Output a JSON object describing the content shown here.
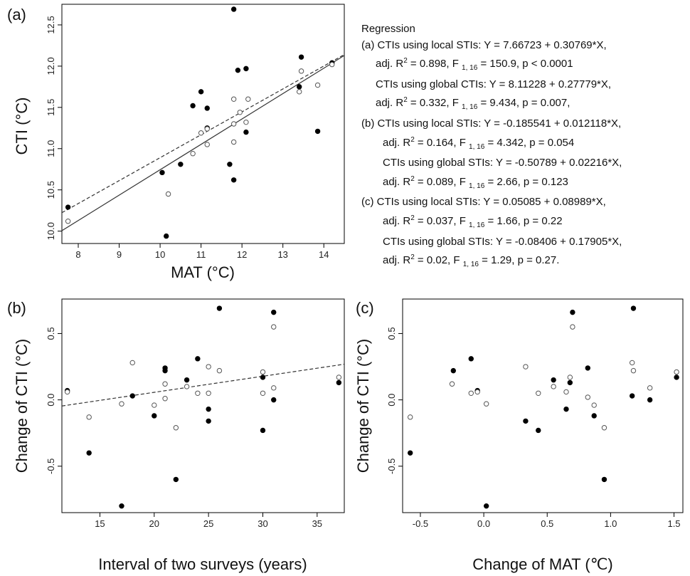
{
  "panels": {
    "a": {
      "label": "(a)",
      "xlabel": "MAT (°C)",
      "ylabel": "CTI (°C)",
      "xticks": [
        "8",
        "9",
        "10",
        "11",
        "12",
        "13",
        "14"
      ],
      "yticks": [
        "10.0",
        "10.5",
        "11.0",
        "11.5",
        "12.0",
        "12.5"
      ]
    },
    "b": {
      "label": "(b)",
      "xlabel": "Interval of two surveys (years)",
      "ylabel": "Change of CTI (°C)",
      "xticks": [
        "15",
        "20",
        "25",
        "30",
        "35"
      ],
      "yticks": [
        "-0.5",
        "0.0",
        "0.5"
      ]
    },
    "c": {
      "label": "(c)",
      "xlabel": "Change of MAT (℃)",
      "ylabel": "Change of CTI (°C)",
      "xticks": [
        "-0.5",
        "0.0",
        "0.5",
        "1.0",
        "1.5"
      ],
      "yticks": [
        "-0.5",
        "0.0",
        "0.5"
      ]
    }
  },
  "regression": {
    "title": "Regression",
    "lines": [
      {
        "indent": "i0",
        "parts": [
          "(a) CTIs using local STIs: Y = 7.66723 + 0.30769*X,"
        ]
      },
      {
        "indent": "i1",
        "parts": [
          "adj. R",
          "2",
          " = 0.898, F ",
          "1, 16",
          " = 150.9, p < 0.0001"
        ]
      },
      {
        "indent": "i1",
        "parts": [
          "CTIs using global CTIs: Y = 8.11228 + 0.27779*X,"
        ]
      },
      {
        "indent": "i1",
        "parts": [
          "adj. R",
          "2",
          " = 0.332, F ",
          "1, 16",
          " = 9.434, p = 0.007,"
        ]
      },
      {
        "indent": "i0",
        "parts": [
          "(b) CTIs using local STIs: Y = -0.185541 + 0.012118*X,"
        ]
      },
      {
        "indent": "i2",
        "parts": [
          "adj. R",
          "2",
          " = 0.164, F ",
          "1, 16",
          " = 4.342, p = 0.054"
        ]
      },
      {
        "indent": "i2",
        "parts": [
          "CTIs using global STIs: Y = -0.50789 + 0.02216*X,"
        ]
      },
      {
        "indent": "i2",
        "parts": [
          "adj. R",
          "2",
          " = 0.089, F ",
          "1, 16",
          " = 2.66, p = 0.123"
        ]
      },
      {
        "indent": "i0",
        "parts": [
          "(c) CTIs using local STIs: Y = 0.05085 + 0.08989*X,"
        ]
      },
      {
        "indent": "i2",
        "parts": [
          "adj. R",
          "2",
          " = 0.037, F ",
          "1, 16",
          " = 1.66, p = 0.22"
        ]
      },
      {
        "indent": "i2",
        "parts": [
          "CTIs using global STIs: Y = -0.08406 + 0.17905*X,"
        ]
      },
      {
        "indent": "i2",
        "parts": [
          "adj. R",
          "2",
          " = 0.02, F ",
          "1, 16",
          " = 1.29, p = 0.27."
        ]
      }
    ]
  },
  "chart_data": [
    {
      "panel": "a",
      "type": "scatter",
      "xlabel": "MAT (°C)",
      "ylabel": "CTI (°C)",
      "xlim": [
        7.6,
        14.5
      ],
      "ylim": [
        9.85,
        12.75
      ],
      "series": [
        {
          "marker": "filled",
          "points": [
            [
              7.75,
              10.29
            ],
            [
              10.05,
              10.71
            ],
            [
              10.15,
              9.94
            ],
            [
              10.5,
              10.81
            ],
            [
              10.8,
              11.52
            ],
            [
              11.0,
              11.69
            ],
            [
              11.15,
              11.49
            ],
            [
              11.15,
              11.25
            ],
            [
              11.7,
              10.81
            ],
            [
              11.8,
              10.62
            ],
            [
              11.8,
              12.69
            ],
            [
              11.9,
              11.95
            ],
            [
              12.1,
              11.97
            ],
            [
              12.1,
              11.2
            ],
            [
              13.4,
              11.75
            ],
            [
              13.45,
              12.11
            ],
            [
              13.85,
              11.21
            ],
            [
              14.2,
              12.04
            ]
          ]
        },
        {
          "marker": "open",
          "points": [
            [
              7.75,
              10.12
            ],
            [
              10.2,
              10.45
            ],
            [
              10.8,
              10.94
            ],
            [
              11.0,
              11.19
            ],
            [
              11.15,
              11.05
            ],
            [
              11.15,
              11.24
            ],
            [
              11.8,
              11.3
            ],
            [
              11.8,
              11.6
            ],
            [
              11.8,
              11.08
            ],
            [
              11.95,
              11.44
            ],
            [
              12.1,
              11.32
            ],
            [
              12.15,
              11.6
            ],
            [
              13.4,
              11.69
            ],
            [
              13.45,
              11.94
            ],
            [
              13.85,
              11.77
            ],
            [
              14.2,
              12.02
            ]
          ]
        }
      ],
      "lines": [
        {
          "style": "solid",
          "intercept": 7.66723,
          "slope": 0.30769
        },
        {
          "style": "dashed",
          "intercept": 8.11228,
          "slope": 0.27779
        }
      ]
    },
    {
      "panel": "b",
      "type": "scatter",
      "xlabel": "Interval of two surveys (years)",
      "ylabel": "Change of CTI (°C)",
      "xlim": [
        11.5,
        37.5
      ],
      "ylim": [
        -0.85,
        0.76
      ],
      "series": [
        {
          "marker": "filled",
          "points": [
            [
              12,
              0.07
            ],
            [
              14,
              -0.4
            ],
            [
              17,
              -0.8
            ],
            [
              18,
              0.03
            ],
            [
              20,
              -0.12
            ],
            [
              21,
              0.24
            ],
            [
              21,
              0.22
            ],
            [
              22,
              -0.6
            ],
            [
              23,
              0.15
            ],
            [
              24,
              0.31
            ],
            [
              25,
              -0.07
            ],
            [
              25,
              -0.16
            ],
            [
              26,
              0.69
            ],
            [
              30,
              0.17
            ],
            [
              30,
              -0.23
            ],
            [
              31,
              0.66
            ],
            [
              31,
              0.0
            ],
            [
              37,
              0.13
            ]
          ]
        },
        {
          "marker": "open",
          "points": [
            [
              12,
              0.06
            ],
            [
              14,
              -0.13
            ],
            [
              17,
              -0.03
            ],
            [
              18,
              0.28
            ],
            [
              20,
              -0.04
            ],
            [
              21,
              0.12
            ],
            [
              21,
              0.01
            ],
            [
              22,
              -0.21
            ],
            [
              23,
              0.1
            ],
            [
              24,
              0.05
            ],
            [
              25,
              0.25
            ],
            [
              25,
              0.05
            ],
            [
              26,
              0.22
            ],
            [
              30,
              0.21
            ],
            [
              30,
              0.05
            ],
            [
              31,
              0.55
            ],
            [
              31,
              0.09
            ],
            [
              37,
              0.17
            ]
          ]
        }
      ],
      "lines": [
        {
          "style": "dashed",
          "intercept": -0.185541,
          "slope": 0.012118
        }
      ]
    },
    {
      "panel": "c",
      "type": "scatter",
      "xlabel": "Change of MAT (℃)",
      "ylabel": "Change of CTI (°C)",
      "xlim": [
        -0.64,
        1.57
      ],
      "ylim": [
        -0.85,
        0.76
      ],
      "series": [
        {
          "marker": "filled",
          "points": [
            [
              -0.58,
              -0.4
            ],
            [
              -0.24,
              0.22
            ],
            [
              -0.1,
              0.31
            ],
            [
              -0.05,
              0.07
            ],
            [
              0.02,
              -0.8
            ],
            [
              0.33,
              -0.16
            ],
            [
              0.43,
              -0.23
            ],
            [
              0.55,
              0.15
            ],
            [
              0.65,
              -0.07
            ],
            [
              0.68,
              0.13
            ],
            [
              0.7,
              0.66
            ],
            [
              0.82,
              0.24
            ],
            [
              0.87,
              -0.12
            ],
            [
              0.95,
              -0.6
            ],
            [
              1.17,
              0.03
            ],
            [
              1.18,
              0.69
            ],
            [
              1.31,
              0.0
            ],
            [
              1.52,
              0.17
            ]
          ]
        },
        {
          "marker": "open",
          "points": [
            [
              -0.58,
              -0.13
            ],
            [
              -0.25,
              0.12
            ],
            [
              -0.1,
              0.05
            ],
            [
              -0.05,
              0.06
            ],
            [
              0.02,
              -0.03
            ],
            [
              0.33,
              0.25
            ],
            [
              0.43,
              0.05
            ],
            [
              0.55,
              0.1
            ],
            [
              0.65,
              0.06
            ],
            [
              0.68,
              0.17
            ],
            [
              0.7,
              0.55
            ],
            [
              0.82,
              0.02
            ],
            [
              0.87,
              -0.04
            ],
            [
              0.95,
              -0.21
            ],
            [
              1.17,
              0.28
            ],
            [
              1.18,
              0.22
            ],
            [
              1.31,
              0.09
            ],
            [
              1.52,
              0.21
            ]
          ]
        }
      ]
    }
  ]
}
